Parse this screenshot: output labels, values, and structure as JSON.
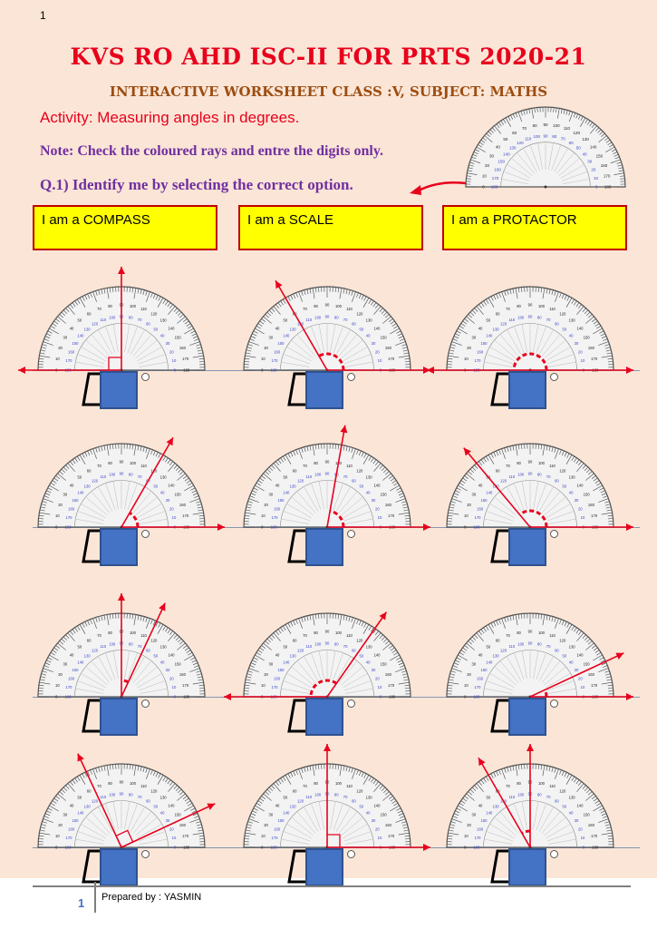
{
  "header": {
    "page_number": "1",
    "title": "KVS RO AHD ISC-II FOR PRTS 2020-21",
    "subtitle": "INTERACTIVE WORKSHEET CLASS :V, SUBJECT: MATHS",
    "activity": "Activity: Measuring angles in degrees.",
    "note": "Note: Check the coloured rays and entre the digits only.",
    "question": "Q.1) Identify me by selecting the correct option."
  },
  "options": [
    {
      "label": "I am a COMPASS"
    },
    {
      "label": "I am a SCALE"
    },
    {
      "label": "I am a PROTACTOR"
    }
  ],
  "protractor_scale": {
    "outer_labels": [
      "0",
      "10",
      "20",
      "30",
      "40",
      "50",
      "60",
      "70",
      "80",
      "90",
      "100",
      "110",
      "120",
      "130",
      "140",
      "150",
      "160",
      "170",
      "180"
    ],
    "inner_labels": [
      "180",
      "170",
      "160",
      "150",
      "140",
      "130",
      "120",
      "110",
      "100",
      "90",
      "80",
      "70",
      "60",
      "50",
      "40",
      "30",
      "20",
      "10",
      "0"
    ]
  },
  "exercises": [
    {
      "rays_deg": [
        180,
        90
      ],
      "marker": "right"
    },
    {
      "rays_deg": [
        0,
        120
      ],
      "marker": "arc"
    },
    {
      "rays_deg": [
        0,
        180
      ],
      "marker": "arc"
    },
    {
      "rays_deg": [
        0,
        60
      ],
      "marker": "arc"
    },
    {
      "rays_deg": [
        0,
        80
      ],
      "marker": "arc"
    },
    {
      "rays_deg": [
        0,
        130
      ],
      "marker": "arc"
    },
    {
      "rays_deg": [
        90,
        65
      ],
      "marker": "arc"
    },
    {
      "rays_deg": [
        180,
        55
      ],
      "marker": "arc"
    },
    {
      "rays_deg": [
        0,
        25
      ],
      "marker": "arc"
    },
    {
      "rays_deg": [
        115,
        25
      ],
      "marker": "right"
    },
    {
      "rays_deg": [
        0,
        90
      ],
      "marker": "right"
    },
    {
      "rays_deg": [
        90,
        120
      ],
      "marker": "arc"
    }
  ],
  "footer": {
    "page_number": "1",
    "prepared_by": "Prepared by : YASMIN"
  },
  "colors": {
    "background": "#fbe5d6",
    "title_red": "#e8001c",
    "subtitle_brown": "#9c4d12",
    "note_purple": "#7030a0",
    "ray_red": "#e8001c",
    "option_yellow": "#ffff00",
    "answer_box_blue": "#4472c4",
    "scale_blue": "#3c46c8"
  }
}
